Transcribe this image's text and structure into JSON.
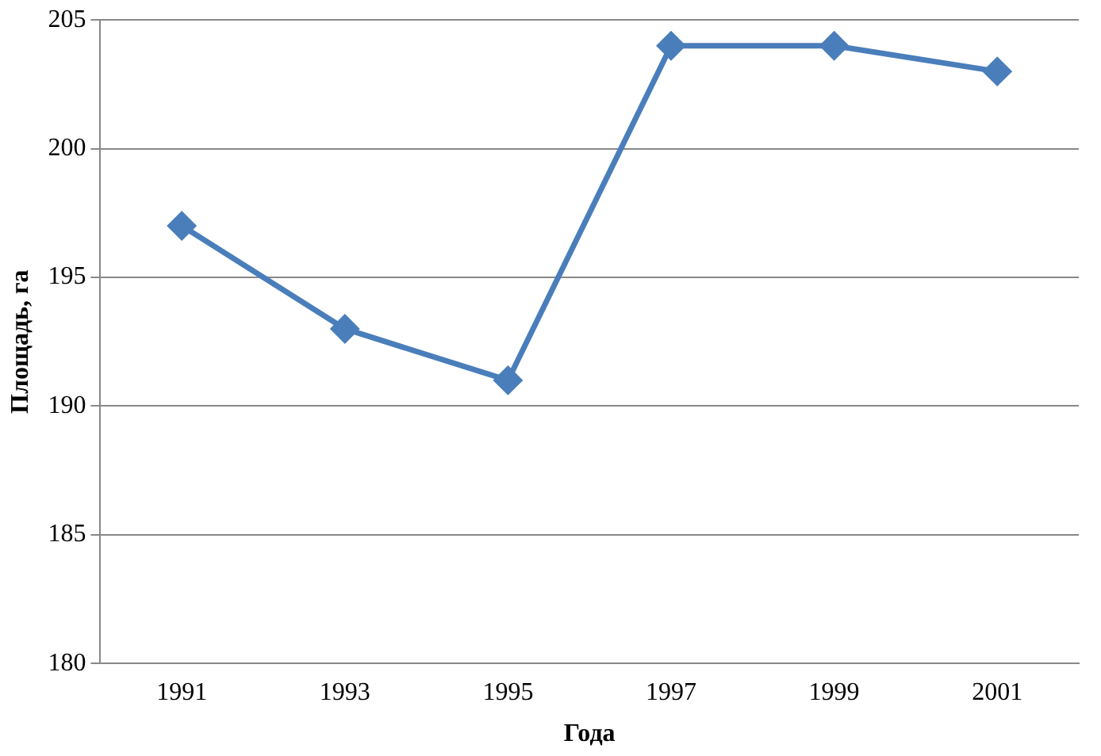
{
  "chart_data": {
    "type": "line",
    "xlabel": "Года",
    "ylabel": "Площадь, га",
    "categories": [
      "1991",
      "1993",
      "1995",
      "1997",
      "1999",
      "2001"
    ],
    "series": [
      {
        "color": "#4a7ebb",
        "values": [
          197,
          193,
          191,
          204,
          204,
          203
        ]
      }
    ],
    "ylim": [
      180,
      205
    ],
    "yticks": [
      180,
      185,
      190,
      195,
      200,
      205
    ],
    "grid": "y",
    "legend": false,
    "marker": "diamond",
    "line_style": "solid"
  }
}
